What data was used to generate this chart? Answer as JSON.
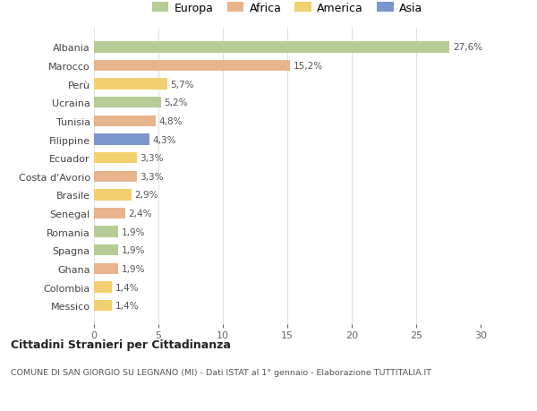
{
  "countries": [
    "Albania",
    "Marocco",
    "Perù",
    "Ucraina",
    "Tunisia",
    "Filippine",
    "Ecuador",
    "Costa d'Avorio",
    "Brasile",
    "Senegal",
    "Romania",
    "Spagna",
    "Ghana",
    "Colombia",
    "Messico"
  ],
  "values": [
    27.6,
    15.2,
    5.7,
    5.2,
    4.8,
    4.3,
    3.3,
    3.3,
    2.9,
    2.4,
    1.9,
    1.9,
    1.9,
    1.4,
    1.4
  ],
  "labels": [
    "27,6%",
    "15,2%",
    "5,7%",
    "5,2%",
    "4,8%",
    "4,3%",
    "3,3%",
    "3,3%",
    "2,9%",
    "2,4%",
    "1,9%",
    "1,9%",
    "1,9%",
    "1,4%",
    "1,4%"
  ],
  "colors": [
    "#b5cc96",
    "#e8b48e",
    "#f2d070",
    "#b5cc96",
    "#e8b48e",
    "#7a96cc",
    "#f2d070",
    "#e8b48e",
    "#f2d070",
    "#e8b48e",
    "#b5cc96",
    "#b5cc96",
    "#e8b48e",
    "#f2d070",
    "#f2d070"
  ],
  "legend_labels": [
    "Europa",
    "Africa",
    "America",
    "Asia"
  ],
  "legend_colors": [
    "#b5cc96",
    "#e8b48e",
    "#f2d070",
    "#7a96cc"
  ],
  "title": "Cittadini Stranieri per Cittadinanza",
  "subtitle": "COMUNE DI SAN GIORGIO SU LEGNANO (MI) - Dati ISTAT al 1° gennaio - Elaborazione TUTTITALIA.IT",
  "xlim": [
    0,
    30
  ],
  "xticks": [
    0,
    5,
    10,
    15,
    20,
    25,
    30
  ],
  "background_color": "#ffffff",
  "grid_color": "#e0e0e0"
}
